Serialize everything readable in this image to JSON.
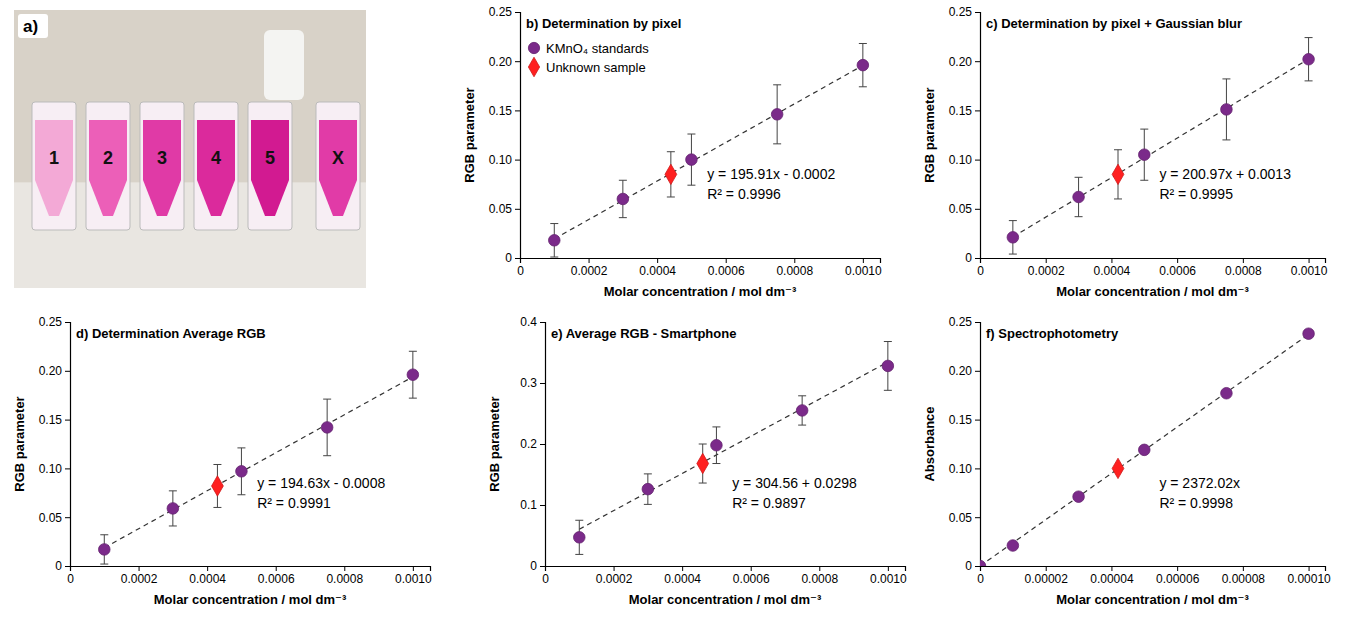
{
  "photo": {
    "letter": "a)",
    "labels": [
      "1",
      "2",
      "3",
      "4",
      "5",
      "X"
    ]
  },
  "chart_data": [
    {
      "type": "scatter",
      "title": "b) Determination by pixel",
      "x_label": "Molar concentration / mol dm⁻³",
      "y_label": "RGB parameter",
      "xlim": [
        0,
        0.00105
      ],
      "ylim": [
        0,
        0.25
      ],
      "xticks": [
        0,
        0.0002,
        0.0004,
        0.0006,
        0.0008,
        {
          "value": 0.001,
          "label": "0.0010"
        }
      ],
      "yticks": [
        0,
        0.05,
        {
          "value": 0.1,
          "label": "0.10"
        },
        0.15,
        {
          "value": 0.2,
          "label": "0.20"
        },
        0.25
      ],
      "grid": false,
      "legend": "upper left",
      "fit": {
        "slope": 195.91,
        "intercept": -0.0002,
        "equation": "y = 195.91x - 0.0002",
        "r2": "R² = 0.9996"
      },
      "series": [
        {
          "name": "KMnO₄ standards",
          "color": "#7b2a8a",
          "marker": "circle",
          "x": [
            0.0001,
            0.0003,
            0.0005,
            0.00075,
            0.001
          ],
          "values": [
            0.018,
            0.06,
            0.1,
            0.146,
            0.196
          ],
          "errors": [
            0.017,
            0.019,
            0.026,
            0.03,
            0.022
          ]
        },
        {
          "name": "Unknown sample",
          "color": "#ff2020",
          "marker": "diamond",
          "x": [
            0.00044
          ],
          "values": [
            0.085
          ],
          "errors": [
            0.023
          ]
        }
      ]
    },
    {
      "type": "scatter",
      "title": "c) Determination by pixel + Gaussian blur",
      "x_label": "Molar concentration / mol dm⁻³",
      "y_label": "RGB parameter",
      "xlim": [
        0,
        0.00105
      ],
      "ylim": [
        0,
        0.25
      ],
      "xticks": [
        0,
        0.0002,
        0.0004,
        0.0006,
        0.0008,
        {
          "value": 0.001,
          "label": "0.0010"
        }
      ],
      "yticks": [
        0,
        0.05,
        {
          "value": 0.1,
          "label": "0.10"
        },
        0.15,
        {
          "value": 0.2,
          "label": "0.20"
        },
        0.25
      ],
      "grid": false,
      "fit": {
        "slope": 200.97,
        "intercept": 0.0013,
        "equation": "y = 200.97x + 0.0013",
        "r2": "R² = 0.9995"
      },
      "series": [
        {
          "color": "#7b2a8a",
          "marker": "circle",
          "x": [
            0.0001,
            0.0003,
            0.0005,
            0.00075,
            0.001
          ],
          "values": [
            0.021,
            0.062,
            0.105,
            0.151,
            0.202
          ],
          "errors": [
            0.017,
            0.02,
            0.026,
            0.031,
            0.022
          ]
        },
        {
          "color": "#ff2020",
          "marker": "diamond",
          "x": [
            0.00042
          ],
          "values": [
            0.085
          ],
          "errors": [
            0.025
          ]
        }
      ]
    },
    {
      "type": "scatter",
      "title": "d) Determination Average RGB",
      "x_label": "Molar concentration / mol dm⁻³",
      "y_label": "RGB parameter",
      "xlim": [
        0,
        0.00105
      ],
      "ylim": [
        0,
        0.25
      ],
      "xticks": [
        0,
        0.0002,
        0.0004,
        0.0006,
        0.0008,
        {
          "value": 0.001,
          "label": "0.0010"
        }
      ],
      "yticks": [
        0,
        0.05,
        {
          "value": 0.1,
          "label": "0.10"
        },
        0.15,
        {
          "value": 0.2,
          "label": "0.20"
        },
        0.25
      ],
      "grid": false,
      "fit": {
        "slope": 194.63,
        "intercept": -0.0008,
        "equation": "y = 194.63x - 0.0008",
        "r2": "R² = 0.9991"
      },
      "series": [
        {
          "color": "#7b2a8a",
          "marker": "circle",
          "x": [
            0.0001,
            0.0003,
            0.0005,
            0.00075,
            0.001
          ],
          "values": [
            0.017,
            0.059,
            0.097,
            0.142,
            0.196
          ],
          "errors": [
            0.015,
            0.018,
            0.024,
            0.029,
            0.024
          ]
        },
        {
          "color": "#ff2020",
          "marker": "diamond",
          "x": [
            0.00043
          ],
          "values": [
            0.082
          ],
          "errors": [
            0.022
          ]
        }
      ]
    },
    {
      "type": "scatter",
      "title": "e) Average RGB - Smartphone",
      "x_label": "Molar concentration / mol dm⁻³",
      "y_label": "RGB parameter",
      "xlim": [
        0,
        0.00105
      ],
      "ylim": [
        0,
        0.4
      ],
      "xticks": [
        0,
        0.0002,
        0.0004,
        0.0006,
        0.0008,
        {
          "value": 0.001,
          "label": "0.0010"
        }
      ],
      "yticks": [
        0,
        0.1,
        0.2,
        0.3,
        0.4
      ],
      "grid": false,
      "fit": {
        "slope": 304.56,
        "intercept": 0.0298,
        "equation": "y = 304.56 + 0.0298",
        "r2": "R² = 0.9897"
      },
      "series": [
        {
          "color": "#7b2a8a",
          "marker": "circle",
          "x": [
            0.0001,
            0.0003,
            0.0005,
            0.00075,
            0.001
          ],
          "values": [
            0.047,
            0.126,
            0.198,
            0.255,
            0.328
          ],
          "errors": [
            0.028,
            0.025,
            0.03,
            0.024,
            0.04
          ]
        },
        {
          "color": "#ff2020",
          "marker": "diamond",
          "x": [
            0.00046
          ],
          "values": [
            0.168
          ],
          "errors": [
            0.032
          ]
        }
      ]
    },
    {
      "type": "scatter",
      "title": "f) Spectrophotometry",
      "x_label": "Molar concentration / mol dm⁻³",
      "y_label": "Absorbance",
      "xlim": [
        0,
        0.000105
      ],
      "ylim": [
        0,
        0.25
      ],
      "xticks": [
        0,
        2e-05,
        4e-05,
        6e-05,
        8e-05,
        {
          "value": 0.0001,
          "label": "0.00010"
        }
      ],
      "yticks": [
        0,
        0.05,
        {
          "value": 0.1,
          "label": "0.10"
        },
        0.15,
        {
          "value": 0.2,
          "label": "0.20"
        },
        0.25
      ],
      "grid": false,
      "fit": {
        "slope": 2372.02,
        "intercept": 0,
        "equation": "y = 2372.02x",
        "r2": "R² = 0.9998"
      },
      "series": [
        {
          "color": "#7b2a8a",
          "marker": "circle",
          "x": [
            0,
            1e-05,
            3e-05,
            5e-05,
            7.5e-05,
            0.0001
          ],
          "values": [
            0,
            0.021,
            0.071,
            0.119,
            0.177,
            0.238
          ]
        },
        {
          "color": "#ff2020",
          "marker": "diamond",
          "x": [
            4.2e-05
          ],
          "values": [
            0.1
          ]
        }
      ]
    }
  ]
}
